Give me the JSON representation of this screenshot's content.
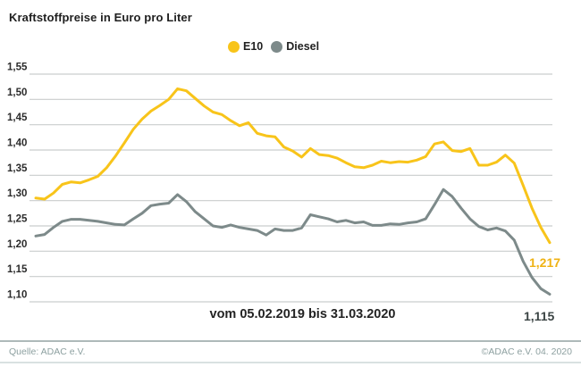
{
  "header": {
    "title": "Kraftstoffpreise in Euro pro Liter"
  },
  "legend": [
    {
      "label": "E10",
      "color": "#f8c41a"
    },
    {
      "label": "Diesel",
      "color": "#7d8a8a"
    }
  ],
  "footer": {
    "source": "Quelle: ADAC e.V.",
    "copyright": "©ADAC e.V.  04. 2020"
  },
  "chart_data": {
    "type": "line",
    "title": "Kraftstoffpreise in Euro pro Liter",
    "xlabel": "",
    "ylabel": "Euro pro Liter",
    "x_range_label": "vom 05.02.2019 bis 31.03.2020",
    "x_start": "05.02.2019",
    "x_end": "31.03.2020",
    "ylim": [
      1.1,
      1.55
    ],
    "ytick_step": 0.05,
    "yticks_labels": [
      "1,55",
      "1,50",
      "1,45",
      "1,40",
      "1,35",
      "1,30",
      "1,25",
      "1,20",
      "1,15",
      "1,10"
    ],
    "grid": true,
    "legend_position": "top",
    "grid_color": "#c9cdcd",
    "axis_label_color": "#2b2b2b",
    "series": [
      {
        "name": "E10",
        "color": "#f8c41a",
        "end_label": "1,217",
        "end_label_color": "#efb213",
        "last_value": 1.217,
        "values": [
          1.305,
          1.303,
          1.315,
          1.332,
          1.337,
          1.335,
          1.341,
          1.348,
          1.365,
          1.388,
          1.414,
          1.441,
          1.461,
          1.477,
          1.488,
          1.5,
          1.521,
          1.517,
          1.502,
          1.487,
          1.475,
          1.47,
          1.458,
          1.448,
          1.454,
          1.433,
          1.428,
          1.426,
          1.406,
          1.398,
          1.386,
          1.403,
          1.391,
          1.389,
          1.384,
          1.375,
          1.367,
          1.365,
          1.37,
          1.378,
          1.375,
          1.377,
          1.376,
          1.38,
          1.387,
          1.412,
          1.416,
          1.399,
          1.397,
          1.403,
          1.37,
          1.37,
          1.376,
          1.39,
          1.374,
          1.33,
          1.285,
          1.247,
          1.217
        ]
      },
      {
        "name": "Diesel",
        "color": "#7d8a8a",
        "end_label": "1,115",
        "end_label_color": "#3b4444",
        "last_value": 1.115,
        "values": [
          1.23,
          1.233,
          1.247,
          1.259,
          1.263,
          1.263,
          1.261,
          1.259,
          1.256,
          1.253,
          1.252,
          1.264,
          1.275,
          1.29,
          1.293,
          1.295,
          1.312,
          1.298,
          1.278,
          1.264,
          1.25,
          1.247,
          1.252,
          1.247,
          1.244,
          1.241,
          1.232,
          1.244,
          1.241,
          1.241,
          1.246,
          1.272,
          1.268,
          1.264,
          1.258,
          1.261,
          1.256,
          1.258,
          1.251,
          1.251,
          1.254,
          1.253,
          1.256,
          1.258,
          1.264,
          1.292,
          1.322,
          1.308,
          1.285,
          1.264,
          1.249,
          1.242,
          1.246,
          1.24,
          1.222,
          1.18,
          1.148,
          1.126,
          1.115
        ]
      }
    ]
  }
}
